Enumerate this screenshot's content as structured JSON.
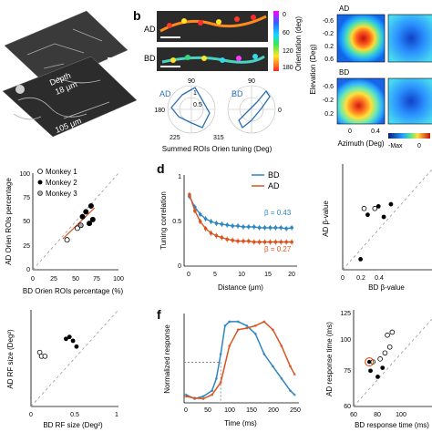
{
  "panel_letters": {
    "b": "b",
    "d": "d",
    "f": "f"
  },
  "panel_a": {
    "depth_1": "Depth",
    "depth_2": "18 μm",
    "depth_deep": "105 μm"
  },
  "panel_b": {
    "row_ad": "AD",
    "row_bd": "BD",
    "colorbar_label": "Orientation (deg)",
    "colorbar_ticks": [
      "0",
      "60",
      "120",
      "180"
    ],
    "polar_ticks": {
      "top": "90",
      "left": "180",
      "right": "0",
      "bl": "225",
      "br": "315",
      "r_inner": "0.5",
      "r_outer": "1"
    },
    "polar_label_ad": "AD",
    "polar_label_bd": "BD",
    "xlabel": "Summed ROIs Orien tuning (Deg)"
  },
  "panel_c": {
    "label_ad": "AD",
    "label_bd": "BD",
    "ylabel": "Elevation (Deg)",
    "xlabel": "Azimuth (Deg)",
    "yticks": [
      "-0.6",
      "-0.2",
      "0.2",
      "0.6"
    ],
    "yticks2": [
      "-0.6",
      "-0.2",
      "0.2"
    ],
    "xticks": [
      "0",
      "0.4"
    ],
    "cbar_min": "-Max",
    "cbar_zero": "0"
  },
  "chart_data": [
    {
      "type": "scatter",
      "xlabel": "BD Orien ROIs percentage (%)",
      "ylabel": "AD Orien ROIs percentage",
      "xlim": [
        0,
        100
      ],
      "ylim": [
        0,
        100
      ],
      "xticks": [
        "0",
        "25",
        "50",
        "75",
        "100"
      ],
      "yticks": [
        "0",
        "25",
        "50",
        "75",
        "100"
      ],
      "legend": [
        "Monkey 1",
        "Monkey 2",
        "Monkey 3"
      ],
      "series": [
        {
          "name": "Monkey 1",
          "points": [
            [
              40,
              31
            ],
            [
              52,
              43
            ]
          ]
        },
        {
          "name": "Monkey 2",
          "points": [
            [
              58,
              55
            ],
            [
              62,
              60
            ],
            [
              66,
              48
            ],
            [
              68,
              66
            ],
            [
              70,
              52
            ]
          ]
        },
        {
          "name": "Monkey 3",
          "points": [
            [
              56,
              46
            ]
          ]
        }
      ],
      "fit_line": [
        [
          35,
          32
        ],
        [
          72,
          64
        ]
      ]
    },
    {
      "type": "line",
      "xlabel": "Distance (μm)",
      "ylabel": "Tuning correlation",
      "xlim": [
        0,
        21
      ],
      "ylim": [
        0,
        1
      ],
      "xticks": [
        "0",
        "5",
        "10",
        "15",
        "20"
      ],
      "yticks": [
        "0",
        "0.5",
        "1"
      ],
      "series": [
        {
          "name": "BD",
          "color": "#2e86c1",
          "x": [
            1,
            2,
            3,
            4,
            5,
            6,
            7,
            8,
            9,
            10,
            11,
            12,
            13,
            14,
            15,
            16,
            17,
            18,
            19,
            20
          ],
          "y": [
            0.78,
            0.66,
            0.58,
            0.53,
            0.5,
            0.48,
            0.47,
            0.46,
            0.45,
            0.45,
            0.44,
            0.44,
            0.44,
            0.43,
            0.43,
            0.43,
            0.43,
            0.43,
            0.42,
            0.43
          ]
        },
        {
          "name": "AD",
          "color": "#d9541e",
          "x": [
            1,
            2,
            3,
            4,
            5,
            6,
            7,
            8,
            9,
            10,
            11,
            12,
            13,
            14,
            15,
            16,
            17,
            18,
            19,
            20
          ],
          "y": [
            0.8,
            0.62,
            0.5,
            0.42,
            0.37,
            0.34,
            0.32,
            0.3,
            0.29,
            0.28,
            0.28,
            0.28,
            0.27,
            0.27,
            0.27,
            0.27,
            0.27,
            0.27,
            0.27,
            0.27
          ]
        }
      ],
      "annotations": {
        "beta_bd": "β = 0.43",
        "beta_ad": "β = 0.27"
      }
    },
    {
      "type": "scatter",
      "xlabel": "BD β-value",
      "ylabel": "AD β-value",
      "xlim": [
        0,
        1
      ],
      "ylim": [
        0,
        1
      ],
      "xticks": [
        "0",
        "0.2",
        "0.4"
      ],
      "open_points": [
        [
          0.24,
          0.58
        ],
        [
          0.36,
          0.58
        ]
      ],
      "filled_points": [
        [
          0.2,
          0.1
        ],
        [
          0.28,
          0.52
        ],
        [
          0.4,
          0.6
        ],
        [
          0.46,
          0.5
        ],
        [
          0.54,
          0.62
        ]
      ]
    },
    {
      "type": "scatter",
      "xlabel": "BD RF size (Deg²)",
      "ylabel": "AD RF size (Deg²)",
      "xlim": [
        0,
        1
      ],
      "ylim": [
        0,
        1
      ],
      "xticks": [
        "0",
        "0.5",
        "1"
      ],
      "open_points": [
        [
          0.1,
          0.56
        ],
        [
          0.12,
          0.52
        ],
        [
          0.16,
          0.52
        ]
      ],
      "filled_points": [
        [
          0.4,
          0.7
        ],
        [
          0.44,
          0.72
        ],
        [
          0.48,
          0.68
        ],
        [
          0.52,
          0.62
        ]
      ]
    },
    {
      "type": "line",
      "xlabel": "Time (ms)",
      "ylabel": "Normalized response",
      "xlim": [
        0,
        260
      ],
      "ylim": [
        0,
        1.1
      ],
      "xticks": [
        "0",
        "50",
        "100",
        "150",
        "200",
        "250"
      ],
      "series": [
        {
          "name": "BD",
          "color": "#2e86c1",
          "x": [
            0,
            20,
            40,
            60,
            70,
            80,
            90,
            100,
            120,
            140,
            160,
            180,
            200,
            220,
            240,
            250
          ],
          "y": [
            0.1,
            0.05,
            0.08,
            0.15,
            0.3,
            0.6,
            0.95,
            1.0,
            1.0,
            0.95,
            0.85,
            0.6,
            0.45,
            0.3,
            0.15,
            0.1
          ]
        },
        {
          "name": "AD",
          "color": "#d9541e",
          "x": [
            0,
            20,
            40,
            60,
            80,
            100,
            120,
            140,
            160,
            180,
            200,
            220,
            240,
            250
          ],
          "y": [
            0.08,
            0.06,
            0.05,
            0.1,
            0.25,
            0.7,
            0.9,
            0.92,
            0.95,
            1.0,
            0.9,
            0.7,
            0.45,
            0.35
          ]
        }
      ],
      "guide_y": 0.5
    },
    {
      "type": "scatter",
      "xlabel": "BD response time (ms)",
      "ylabel": "AD response time (ms)",
      "xlim": [
        60,
        125
      ],
      "ylim": [
        60,
        125
      ],
      "xticks": [
        "60",
        "80",
        "100"
      ],
      "yticks": [
        "60",
        "75",
        "100",
        "125"
      ],
      "open_points": [
        [
          76,
          90
        ],
        [
          82,
          92
        ],
        [
          86,
          96
        ],
        [
          90,
          100
        ],
        [
          88,
          108
        ],
        [
          92,
          110
        ]
      ],
      "filled_points": [
        [
          74,
          84
        ],
        [
          80,
          80
        ],
        [
          84,
          86
        ]
      ],
      "highlighted_point": [
        73,
        90
      ]
    }
  ]
}
